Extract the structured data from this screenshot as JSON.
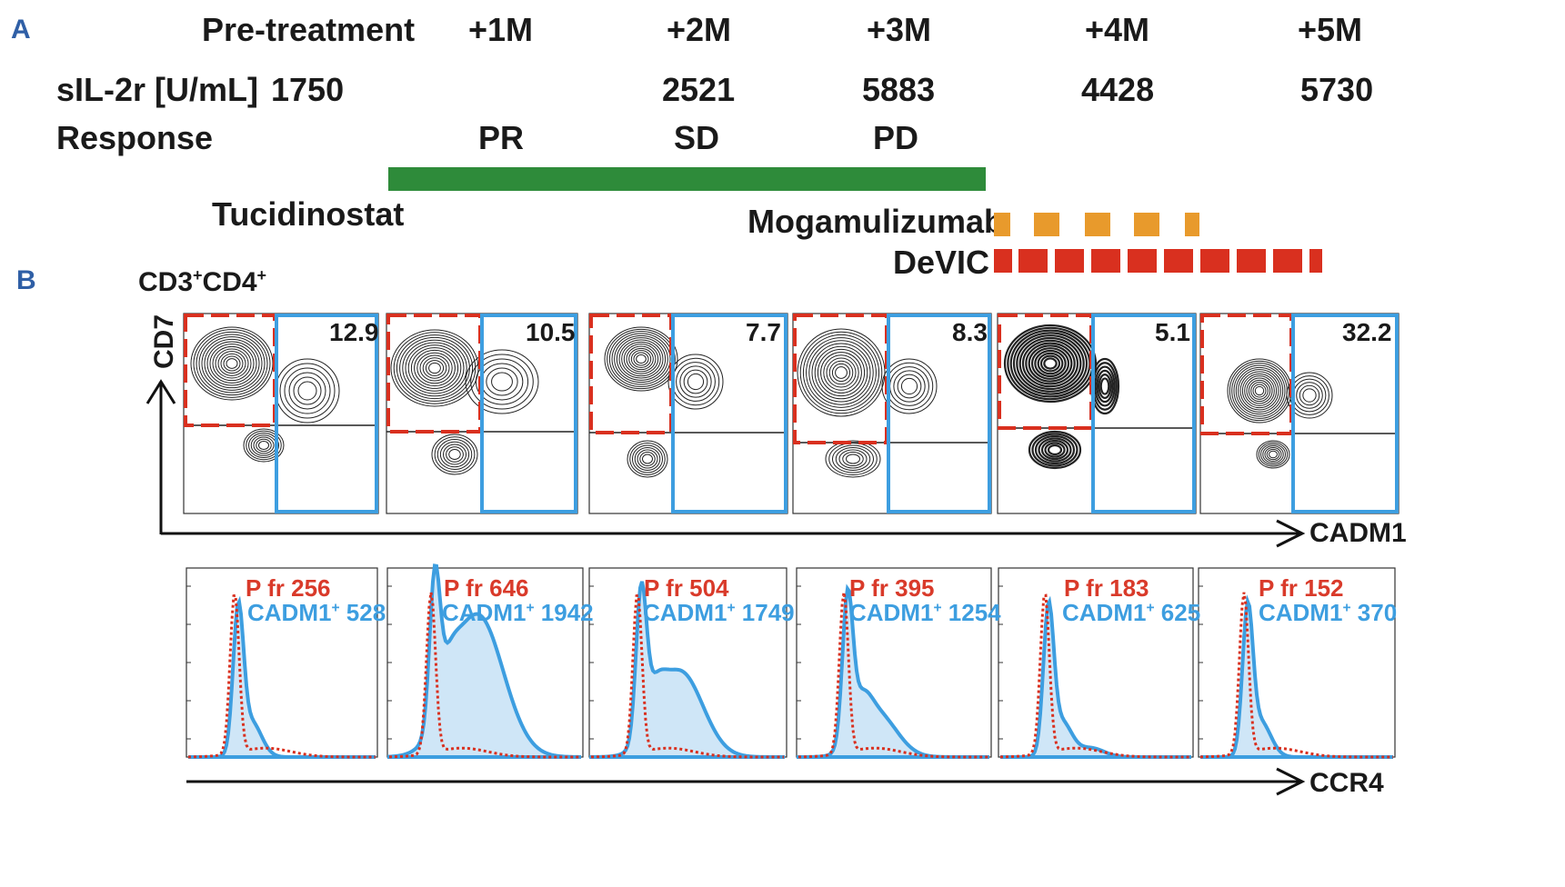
{
  "panel_a": {
    "letter": "A",
    "timepoints": [
      "Pre-treatment",
      "+1M",
      "+2M",
      "+3M",
      "+4M",
      "+5M"
    ],
    "sil2r_label": "sIL-2r [U/mL]",
    "sil2r_values": [
      "1750",
      "",
      "2521",
      "5883",
      "4428",
      "5730"
    ],
    "response_label": "Response",
    "responses": [
      "",
      "PR",
      "SD",
      "PD",
      "",
      ""
    ],
    "treatments": {
      "tucidinostat": "Tucidinostat",
      "mogamulizumab": "Mogamulizumab",
      "devic": "DeVIC"
    },
    "colors": {
      "tucidinostat": "#2e8b3a",
      "mogamulizumab": "#e89a2c",
      "devic": "#d9301f"
    }
  },
  "panel_b": {
    "letter": "B",
    "population": "CD3",
    "population_sup1": "+",
    "population_mid": "CD4",
    "population_sup2": "+",
    "y_axis": "CD7",
    "x_axis": "CADM1",
    "hist_x_axis": "CCR4",
    "cadm1_percentages": [
      "12.9",
      "10.5",
      "7.7",
      "8.3",
      "5.1",
      "32.2"
    ],
    "hist_labels": {
      "red_prefix": "P fr",
      "blue_prefix": "CADM1",
      "blue_sup": "+"
    },
    "hist_values": {
      "pfr": [
        "256",
        "646",
        "504",
        "395",
        "183",
        "152"
      ],
      "cadm1": [
        "528",
        "1942",
        "1749",
        "1254",
        "625",
        "370"
      ]
    },
    "colors": {
      "gate_red": "#d9301f",
      "gate_blue": "#3d9ee0",
      "hist_fill": "#cfe6f7"
    }
  }
}
